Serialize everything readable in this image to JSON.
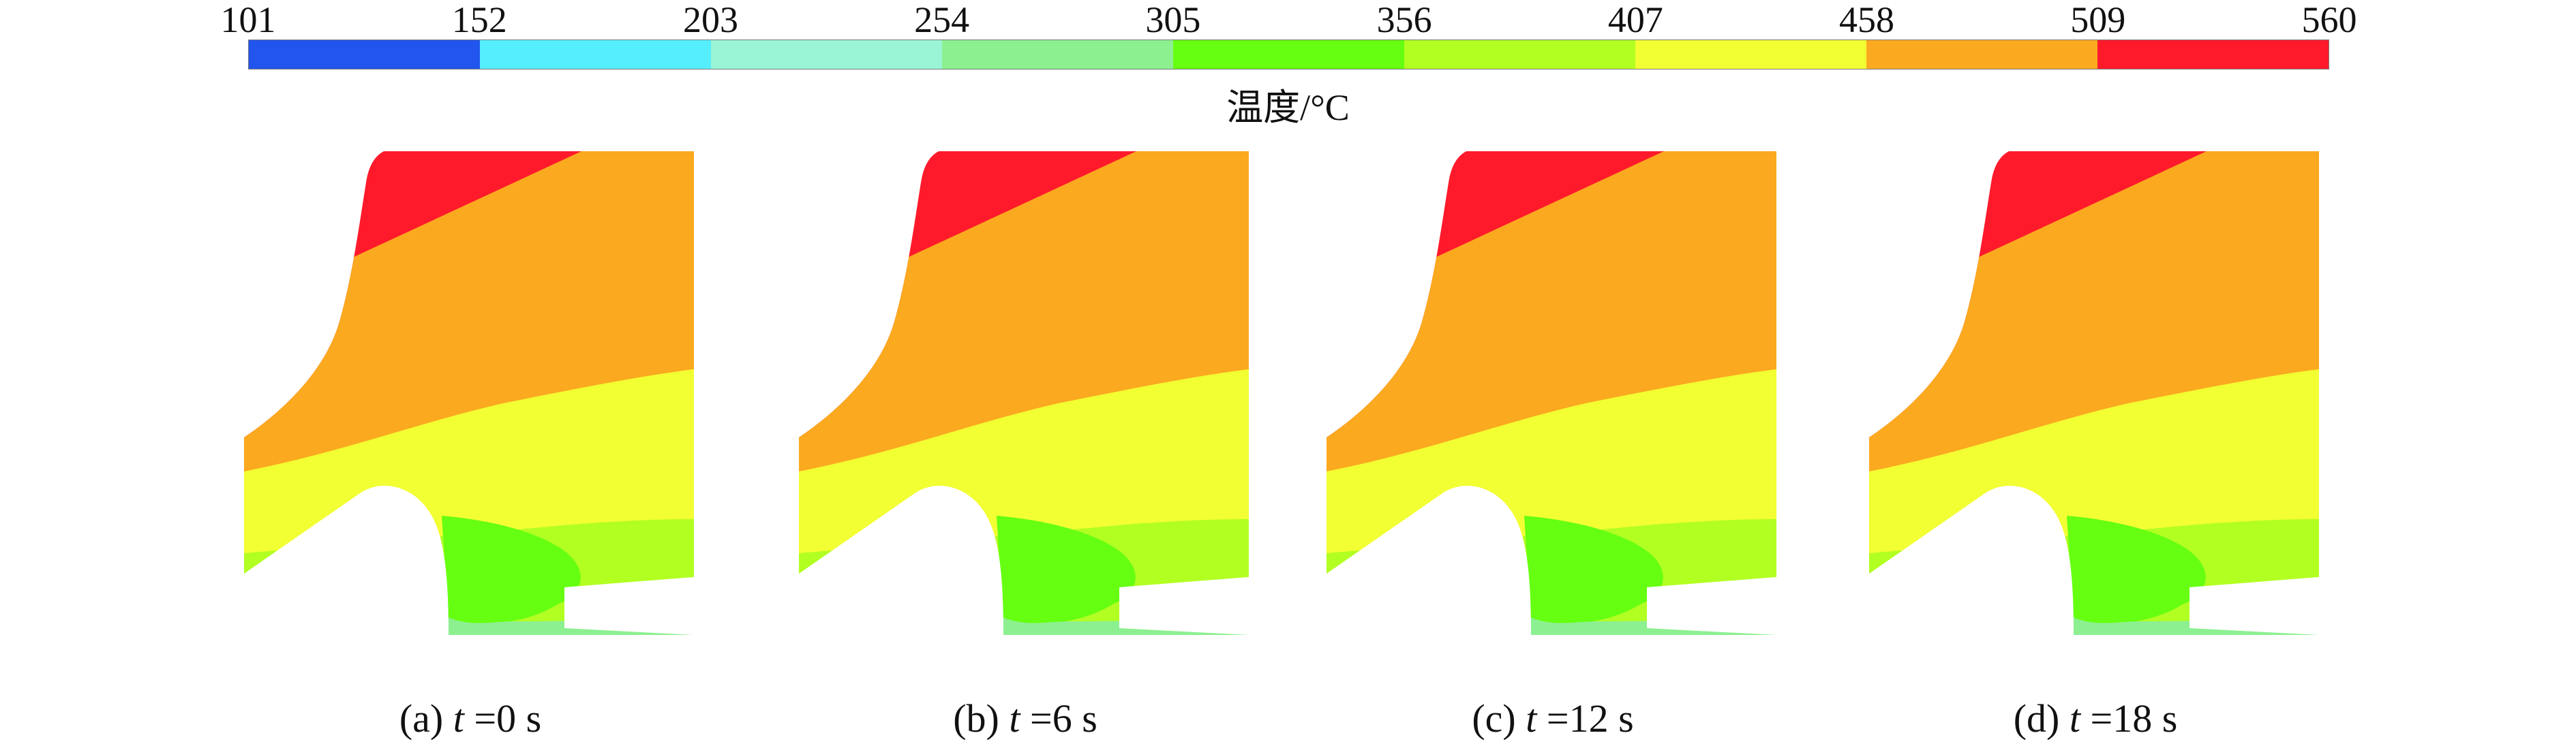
{
  "colorbar": {
    "ticks": [
      "101",
      "152",
      "203",
      "254",
      "305",
      "356",
      "407",
      "458",
      "509",
      "560"
    ],
    "bands": [
      {
        "range": "101–152",
        "color": "#2255ee"
      },
      {
        "range": "152–203",
        "color": "#55eeff"
      },
      {
        "range": "203–254",
        "color": "#99f5d6"
      },
      {
        "range": "254–305",
        "color": "#8cf090"
      },
      {
        "range": "305–356",
        "color": "#66ff11"
      },
      {
        "range": "356–407",
        "color": "#b2ff22"
      },
      {
        "range": "407–458",
        "color": "#f2ff33"
      },
      {
        "range": "458–509",
        "color": "#fba91f"
      },
      {
        "range": "509–560",
        "color": "#ff1a2b"
      }
    ],
    "title": "温度/°C"
  },
  "panels": [
    {
      "label_prefix": "(a) ",
      "t_symbol": "t",
      "label_suffix": " =0 s"
    },
    {
      "label_prefix": "(b) ",
      "t_symbol": "t",
      "label_suffix": " =6 s"
    },
    {
      "label_prefix": "(c) ",
      "t_symbol": "t",
      "label_suffix": " =12 s"
    },
    {
      "label_prefix": "(d) ",
      "t_symbol": "t",
      "label_suffix": " =18 s"
    }
  ]
}
